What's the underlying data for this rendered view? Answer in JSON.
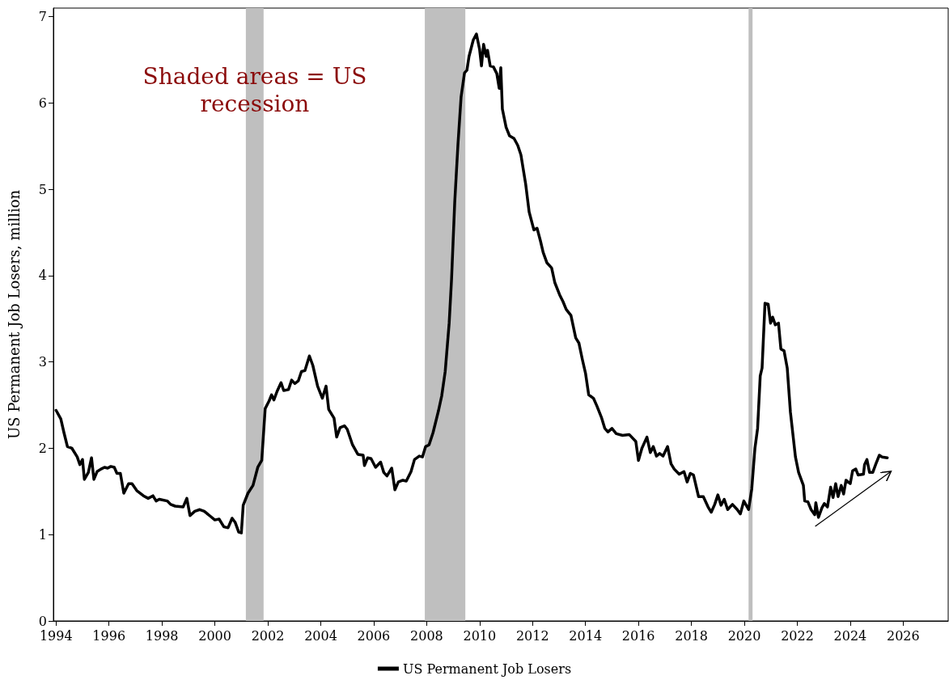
{
  "chart_data": {
    "type": "line",
    "ylabel": "US Permanent Job Losers, million",
    "annotations": [
      "Shaded areas = US recession"
    ],
    "x": [
      1994.0,
      1994.18,
      1994.3,
      1994.43,
      1994.6,
      1994.8,
      1994.9,
      1995.0,
      1995.07,
      1995.22,
      1995.34,
      1995.43,
      1995.55,
      1995.7,
      1995.83,
      1995.95,
      1996.07,
      1996.2,
      1996.3,
      1996.43,
      1996.56,
      1996.74,
      1996.87,
      1997.05,
      1997.3,
      1997.48,
      1997.66,
      1997.78,
      1997.9,
      1998.2,
      1998.33,
      1998.5,
      1998.8,
      1998.94,
      1999.06,
      1999.24,
      1999.43,
      1999.6,
      1999.8,
      2000.0,
      2000.16,
      2000.34,
      2000.5,
      2000.65,
      2000.77,
      2000.9,
      2001.0,
      2001.07,
      2001.25,
      2001.44,
      2001.62,
      2001.77,
      2001.9,
      2002.05,
      2002.14,
      2002.23,
      2002.35,
      2002.5,
      2002.6,
      2002.78,
      2002.9,
      2003.02,
      2003.15,
      2003.27,
      2003.4,
      2003.57,
      2003.7,
      2003.88,
      2004.06,
      2004.2,
      2004.3,
      2004.5,
      2004.6,
      2004.73,
      2004.9,
      2005.0,
      2005.2,
      2005.4,
      2005.6,
      2005.65,
      2005.77,
      2005.9,
      2006.07,
      2006.26,
      2006.38,
      2006.5,
      2006.68,
      2006.8,
      2006.93,
      2007.1,
      2007.23,
      2007.41,
      2007.54,
      2007.72,
      2007.84,
      2007.96,
      2008.09,
      2008.24,
      2008.45,
      2008.57,
      2008.7,
      2008.85,
      2008.94,
      2009.06,
      2009.18,
      2009.3,
      2009.43,
      2009.52,
      2009.6,
      2009.76,
      2009.88,
      2010.0,
      2010.07,
      2010.15,
      2010.25,
      2010.3,
      2010.4,
      2010.52,
      2010.65,
      2010.74,
      2010.8,
      2010.86,
      2011.0,
      2011.13,
      2011.3,
      2011.44,
      2011.56,
      2011.74,
      2011.87,
      2012.05,
      2012.17,
      2012.3,
      2012.4,
      2012.54,
      2012.72,
      2012.84,
      2013.02,
      2013.15,
      2013.27,
      2013.45,
      2013.63,
      2013.75,
      2013.88,
      2014.0,
      2014.12,
      2014.3,
      2014.43,
      2014.6,
      2014.73,
      2014.85,
      2015.0,
      2015.16,
      2015.4,
      2015.65,
      2015.9,
      2016.0,
      2016.13,
      2016.32,
      2016.45,
      2016.56,
      2016.68,
      2016.8,
      2016.93,
      2017.1,
      2017.23,
      2017.35,
      2017.54,
      2017.72,
      2017.84,
      2017.96,
      2018.08,
      2018.27,
      2018.45,
      2018.63,
      2018.75,
      2018.88,
      2019.0,
      2019.12,
      2019.24,
      2019.37,
      2019.55,
      2019.73,
      2019.85,
      2019.98,
      2020.16,
      2020.28,
      2020.4,
      2020.5,
      2020.6,
      2020.67,
      2020.78,
      2020.9,
      2020.99,
      2021.07,
      2021.17,
      2021.29,
      2021.38,
      2021.5,
      2021.62,
      2021.74,
      2021.93,
      2022.05,
      2022.23,
      2022.28,
      2022.4,
      2022.52,
      2022.66,
      2022.7,
      2022.8,
      2022.93,
      2023.02,
      2023.14,
      2023.26,
      2023.35,
      2023.45,
      2023.54,
      2023.66,
      2023.75,
      2023.84,
      2024.0,
      2024.09,
      2024.21,
      2024.3,
      2024.5,
      2024.54,
      2024.63,
      2024.73,
      2024.85,
      2024.97,
      2025.1,
      2025.2,
      2025.4
    ],
    "series": [
      {
        "name": "US Permanent Job Losers",
        "color": "#000000",
        "values": [
          2.44,
          2.34,
          2.18,
          2.02,
          2.0,
          1.9,
          1.81,
          1.87,
          1.64,
          1.72,
          1.89,
          1.64,
          1.73,
          1.76,
          1.78,
          1.77,
          1.79,
          1.78,
          1.71,
          1.71,
          1.48,
          1.59,
          1.59,
          1.51,
          1.45,
          1.42,
          1.45,
          1.39,
          1.41,
          1.39,
          1.35,
          1.33,
          1.32,
          1.42,
          1.22,
          1.27,
          1.29,
          1.27,
          1.22,
          1.17,
          1.18,
          1.09,
          1.08,
          1.19,
          1.14,
          1.03,
          1.02,
          1.34,
          1.48,
          1.57,
          1.78,
          1.86,
          2.46,
          2.55,
          2.62,
          2.56,
          2.66,
          2.76,
          2.67,
          2.68,
          2.79,
          2.75,
          2.78,
          2.89,
          2.9,
          3.07,
          2.96,
          2.72,
          2.58,
          2.72,
          2.45,
          2.35,
          2.13,
          2.24,
          2.26,
          2.22,
          2.04,
          1.93,
          1.92,
          1.8,
          1.89,
          1.88,
          1.78,
          1.84,
          1.72,
          1.68,
          1.77,
          1.52,
          1.61,
          1.63,
          1.62,
          1.73,
          1.87,
          1.91,
          1.9,
          2.02,
          2.04,
          2.18,
          2.44,
          2.61,
          2.89,
          3.45,
          3.96,
          4.85,
          5.51,
          6.07,
          6.35,
          6.38,
          6.54,
          6.73,
          6.8,
          6.62,
          6.43,
          6.68,
          6.54,
          6.61,
          6.43,
          6.42,
          6.34,
          6.17,
          6.41,
          5.93,
          5.72,
          5.62,
          5.59,
          5.51,
          5.4,
          5.06,
          4.74,
          4.53,
          4.55,
          4.4,
          4.27,
          4.15,
          4.09,
          3.92,
          3.78,
          3.7,
          3.61,
          3.54,
          3.28,
          3.22,
          3.03,
          2.87,
          2.62,
          2.58,
          2.49,
          2.36,
          2.23,
          2.19,
          2.23,
          2.17,
          2.15,
          2.16,
          2.08,
          1.86,
          2.0,
          2.13,
          1.95,
          2.02,
          1.91,
          1.94,
          1.91,
          2.02,
          1.82,
          1.76,
          1.7,
          1.73,
          1.61,
          1.71,
          1.69,
          1.44,
          1.44,
          1.32,
          1.26,
          1.35,
          1.46,
          1.34,
          1.41,
          1.29,
          1.35,
          1.29,
          1.24,
          1.39,
          1.29,
          1.53,
          2.0,
          2.23,
          2.84,
          2.93,
          3.68,
          3.67,
          3.45,
          3.52,
          3.43,
          3.45,
          3.15,
          3.13,
          2.93,
          2.42,
          1.9,
          1.72,
          1.57,
          1.39,
          1.38,
          1.29,
          1.23,
          1.37,
          1.2,
          1.31,
          1.36,
          1.32,
          1.55,
          1.43,
          1.59,
          1.44,
          1.57,
          1.47,
          1.63,
          1.59,
          1.74,
          1.76,
          1.69,
          1.7,
          1.81,
          1.87,
          1.72,
          1.72,
          1.82,
          1.92,
          1.9,
          1.89
        ]
      }
    ],
    "xlim": [
      1993.9,
      2027.7
    ],
    "xticks": [
      1994,
      1996,
      1998,
      2000,
      2002,
      2004,
      2006,
      2008,
      2010,
      2012,
      2014,
      2016,
      2018,
      2020,
      2022,
      2024,
      2026
    ],
    "ylim": [
      0,
      7.1
    ],
    "yticks": [
      0,
      1,
      2,
      3,
      4,
      5,
      6,
      7
    ],
    "bands": [
      {
        "axis": "x",
        "from": 2001.17,
        "to": 2001.84,
        "color": "#bfbfbf"
      },
      {
        "axis": "x",
        "from": 2007.93,
        "to": 2009.46,
        "color": "#bfbfbf"
      },
      {
        "axis": "x",
        "from": 2020.16,
        "to": 2020.31,
        "color": "#bfbfbf"
      }
    ],
    "grid": false,
    "legend": "bottom",
    "marker": "none",
    "line_style": "solid"
  }
}
